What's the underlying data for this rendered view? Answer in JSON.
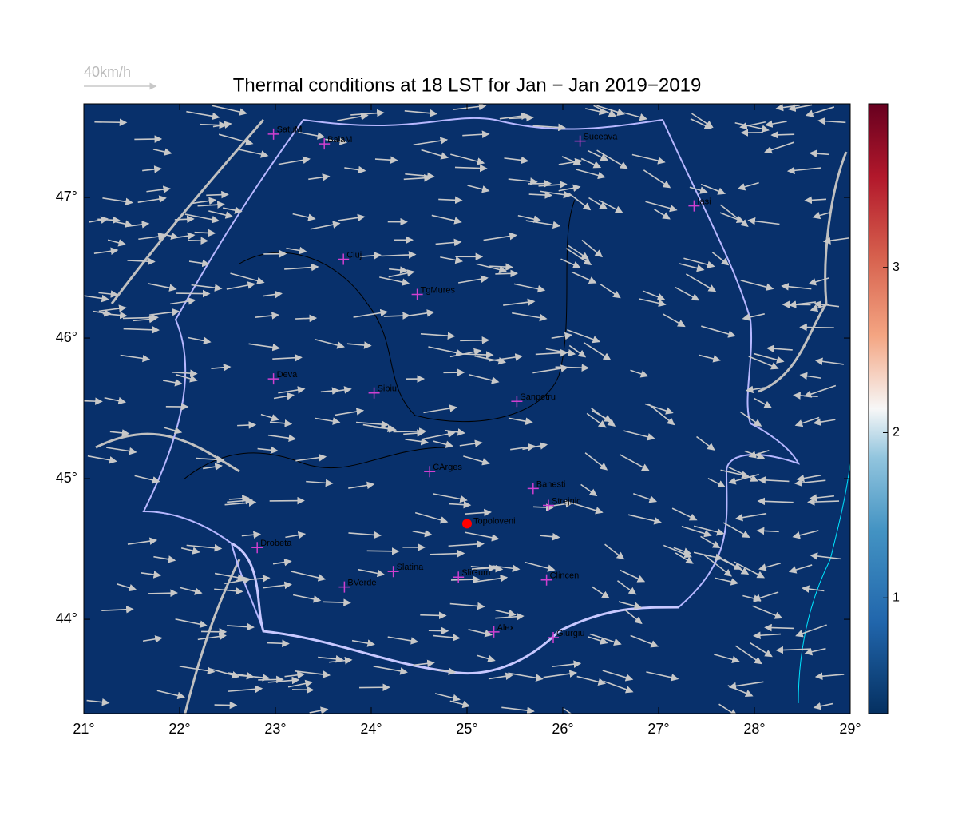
{
  "title": "Thermal conditions at 18 LST for Jan − Jan  2019−2019",
  "legend": {
    "label": "40km/h"
  },
  "map": {
    "xlim": [
      21,
      29
    ],
    "ylim": [
      43.33,
      47.665
    ],
    "background": "#08306b",
    "xticks": [
      {
        "value": 21,
        "label": "21°"
      },
      {
        "value": 22,
        "label": "22°"
      },
      {
        "value": 23,
        "label": "23°"
      },
      {
        "value": 24,
        "label": "24°"
      },
      {
        "value": 25,
        "label": "25°"
      },
      {
        "value": 26,
        "label": "26°"
      },
      {
        "value": 27,
        "label": "27°"
      },
      {
        "value": 28,
        "label": "28°"
      },
      {
        "value": 29,
        "label": "29°"
      }
    ],
    "yticks": [
      {
        "value": 44,
        "label": "44°"
      },
      {
        "value": 45,
        "label": "45°"
      },
      {
        "value": 46,
        "label": "46°"
      },
      {
        "value": 47,
        "label": "47°"
      }
    ]
  },
  "colorbar": {
    "clim": [
      0.3,
      3.99
    ],
    "ticks": [
      1,
      2,
      3
    ]
  },
  "stations": [
    {
      "name": "SatuM",
      "lon": 22.98,
      "lat": 47.45
    },
    {
      "name": "BaiaM",
      "lon": 23.51,
      "lat": 47.38
    },
    {
      "name": "Suceava",
      "lon": 26.18,
      "lat": 47.4
    },
    {
      "name": "Iasi",
      "lon": 27.37,
      "lat": 46.94
    },
    {
      "name": "Cluj",
      "lon": 23.71,
      "lat": 46.56
    },
    {
      "name": "TgMures",
      "lon": 24.48,
      "lat": 46.31
    },
    {
      "name": "Deva",
      "lon": 22.98,
      "lat": 45.71
    },
    {
      "name": "Sibiu",
      "lon": 24.03,
      "lat": 45.61
    },
    {
      "name": "Sanpetru",
      "lon": 25.52,
      "lat": 45.55
    },
    {
      "name": "CArges",
      "lon": 24.61,
      "lat": 45.05
    },
    {
      "name": "Banesti",
      "lon": 25.69,
      "lat": 44.93
    },
    {
      "name": "Strejnic",
      "lon": 25.85,
      "lat": 44.81
    },
    {
      "name": "Drobeta",
      "lon": 22.81,
      "lat": 44.51
    },
    {
      "name": "Slatina",
      "lon": 24.23,
      "lat": 44.34
    },
    {
      "name": "SliGum",
      "lon": 24.91,
      "lat": 44.3
    },
    {
      "name": "Clinceni",
      "lon": 25.83,
      "lat": 44.28
    },
    {
      "name": "BVerde",
      "lon": 23.72,
      "lat": 44.23
    },
    {
      "name": "Alex",
      "lon": 25.28,
      "lat": 43.91
    },
    {
      "name": "Giurgiu",
      "lon": 25.9,
      "lat": 43.87
    }
  ],
  "highlight": {
    "name": "Topoloveni",
    "lon": 25.0,
    "lat": 44.68,
    "color": "#ff0000"
  }
}
